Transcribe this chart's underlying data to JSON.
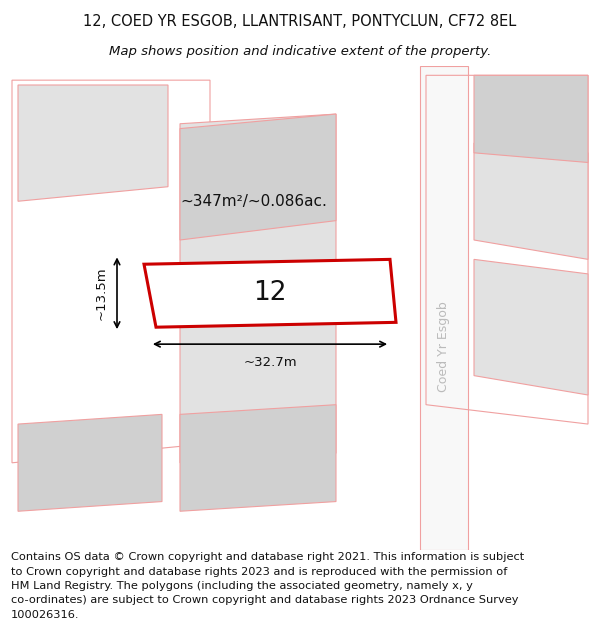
{
  "title_line1": "12, COED YR ESGOB, LLANTRISANT, PONTYCLUN, CF72 8EL",
  "title_line2": "Map shows position and indicative extent of the property.",
  "footer_text": "Contains OS data © Crown copyright and database right 2021. This information is subject to Crown copyright and database rights 2023 and is reproduced with the permission of HM Land Registry. The polygons (including the associated geometry, namely x, y co-ordinates) are subject to Crown copyright and database rights 2023 Ordnance Survey 100026316.",
  "background_color": "#ffffff",
  "polygon_edge_light": "#f0a0a0",
  "subject_fill": "#ffffff",
  "subject_edge": "#cc0000",
  "gray_fill": "#d0d0d0",
  "light_gray": "#e2e2e2",
  "map_bg": "#f4f4f4",
  "street_color": "#bbbbbb",
  "street_label": "Coed Yr Esgob",
  "area_label": "~347m²/~0.086ac.",
  "width_label": "~32.7m",
  "height_label": "~13.5m",
  "number_label": "12",
  "title_fontsize": 10.5,
  "subtitle_fontsize": 9.5,
  "footer_fontsize": 8.2
}
